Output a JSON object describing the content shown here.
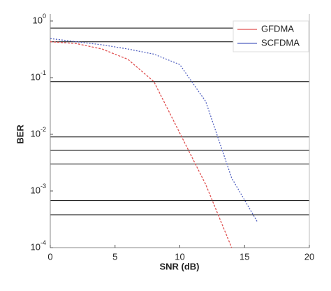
{
  "chart_data": {
    "type": "line",
    "x_label": "SNR (dB)",
    "y_label": "BER",
    "x": [
      0,
      2,
      4,
      6,
      8,
      10,
      12,
      14,
      16
    ],
    "series": [
      {
        "name": "GFDMA",
        "color": "#e05050",
        "values": [
          0.43,
          0.4,
          0.32,
          0.21,
          0.085,
          0.0105,
          0.0013,
          0.0001,
          null
        ]
      },
      {
        "name": "SCFDMA",
        "color": "#5060c0",
        "values": [
          0.49,
          0.43,
          0.38,
          0.32,
          0.26,
          0.17,
          0.038,
          0.0017,
          0.00028
        ]
      }
    ],
    "log_y": true,
    "xlim": [
      0,
      20
    ],
    "xticks": [
      0,
      5,
      10,
      15,
      20
    ],
    "ylim": [
      0.0001,
      1
    ],
    "yticks": [
      {
        "value": 1,
        "label": "10^0"
      },
      {
        "value": 0.1,
        "label": "10^-1"
      },
      {
        "value": 0.01,
        "label": "10^-2"
      },
      {
        "value": 0.001,
        "label": "10^-3"
      },
      {
        "value": 0.0001,
        "label": "10^-4"
      }
    ],
    "hlines": [
      0.75,
      0.43,
      0.085,
      0.009,
      0.0052,
      0.003,
      0.00068,
      0.00038
    ],
    "legend": "upper right"
  }
}
